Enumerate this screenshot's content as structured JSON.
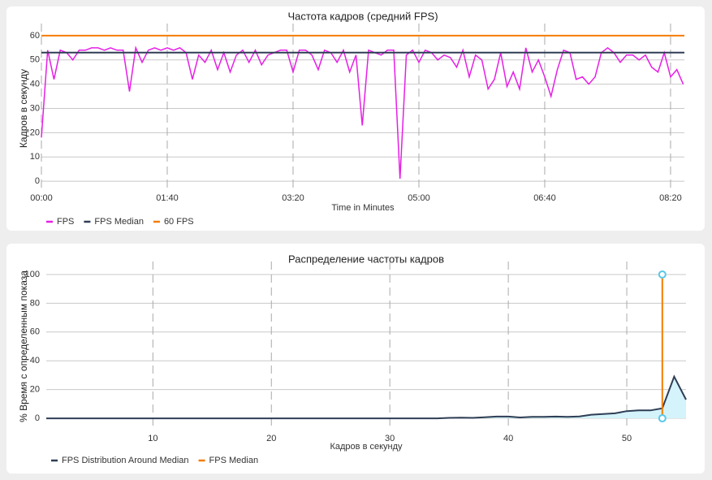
{
  "chart_data": [
    {
      "type": "line",
      "title": "Частота кадров (средний FPS)",
      "x_label": "Time in Minutes",
      "y_label": "Кадров в секунду",
      "xlim": [
        0,
        511
      ],
      "ylim": [
        -5,
        65
      ],
      "xticks": [
        {
          "value": 0,
          "label": "00:00"
        },
        {
          "value": 100,
          "label": "01:40"
        },
        {
          "value": 200,
          "label": "03:20"
        },
        {
          "value": 300,
          "label": "05:00"
        },
        {
          "value": 400,
          "label": "06:40"
        },
        {
          "value": 500,
          "label": "08:20"
        }
      ],
      "yticks": [
        0,
        10,
        20,
        30,
        40,
        50,
        60
      ],
      "grid": true,
      "series": [
        {
          "name": "FPS",
          "color": "#e61fe6",
          "x": [
            0,
            5,
            10,
            15,
            20,
            25,
            30,
            35,
            40,
            45,
            50,
            55,
            60,
            65,
            70,
            75,
            80,
            85,
            90,
            95,
            100,
            105,
            110,
            115,
            120,
            125,
            130,
            135,
            140,
            145,
            150,
            155,
            160,
            165,
            170,
            175,
            180,
            185,
            190,
            195,
            200,
            205,
            210,
            215,
            220,
            225,
            230,
            235,
            240,
            245,
            250,
            255,
            260,
            265,
            270,
            275,
            280,
            285,
            290,
            295,
            300,
            305,
            310,
            315,
            320,
            325,
            330,
            335,
            340,
            345,
            350,
            355,
            360,
            365,
            370,
            375,
            380,
            385,
            390,
            395,
            400,
            405,
            410,
            415,
            420,
            425,
            430,
            435,
            440,
            445,
            450,
            455,
            460,
            465,
            470,
            475,
            480,
            485,
            490,
            495,
            500,
            505,
            510
          ],
          "values": [
            18,
            54,
            42,
            54,
            53,
            50,
            54,
            54,
            55,
            55,
            54,
            55,
            54,
            54,
            37,
            55,
            49,
            54,
            55,
            54,
            55,
            54,
            55,
            53,
            42,
            52,
            49,
            54,
            46,
            53,
            45,
            52,
            54,
            49,
            54,
            48,
            52,
            53,
            54,
            54,
            45,
            54,
            54,
            52,
            46,
            54,
            53,
            49,
            54,
            45,
            52,
            23,
            54,
            53,
            52,
            54,
            54,
            1,
            52,
            54,
            49,
            54,
            53,
            50,
            52,
            51,
            47,
            54,
            43,
            52,
            50,
            38,
            42,
            53,
            39,
            45,
            38,
            55,
            45,
            50,
            43,
            35,
            46,
            54,
            53,
            42,
            43,
            40,
            43,
            53,
            55,
            53,
            49,
            52,
            52,
            50,
            52,
            47,
            45,
            53,
            43,
            46,
            40
          ]
        },
        {
          "name": "FPS Median",
          "color": "#2e3e55",
          "x": [
            0,
            511
          ],
          "values": [
            53,
            53
          ]
        },
        {
          "name": "60 FPS",
          "color": "#f57c00",
          "x": [
            0,
            511
          ],
          "values": [
            60,
            60
          ]
        }
      ]
    },
    {
      "type": "area",
      "title": "Распределение частоты кадров",
      "x_label": "Кадров в секунду",
      "y_label": "% Время с определенным показа",
      "xlim": [
        1,
        55
      ],
      "ylim": [
        -9,
        109
      ],
      "xticks": [
        10,
        20,
        30,
        40,
        50
      ],
      "yticks": [
        0,
        20,
        40,
        60,
        80,
        100
      ],
      "grid": true,
      "series": [
        {
          "name": "FPS Distribution Around Median",
          "color": "#2e3e55",
          "fill": "#d4f3fa",
          "x": [
            1,
            2,
            3,
            4,
            5,
            6,
            7,
            8,
            9,
            10,
            11,
            12,
            13,
            14,
            15,
            16,
            17,
            18,
            19,
            20,
            21,
            22,
            23,
            24,
            25,
            26,
            27,
            28,
            29,
            30,
            31,
            32,
            33,
            34,
            35,
            36,
            37,
            38,
            39,
            40,
            41,
            42,
            43,
            44,
            45,
            46,
            47,
            48,
            49,
            50,
            51,
            52,
            53,
            54,
            55
          ],
          "values": [
            0,
            0,
            0,
            0,
            0,
            0,
            0,
            0,
            0,
            0,
            0,
            0,
            0,
            0,
            0,
            0,
            0,
            0,
            0,
            0,
            0,
            0,
            0,
            0,
            0,
            0,
            0,
            0,
            0,
            0,
            0,
            0,
            0,
            0,
            0.3,
            0.5,
            0.3,
            0.7,
            1.2,
            1.2,
            0.6,
            1,
            1,
            1.2,
            1,
            1.3,
            2.5,
            3,
            3.5,
            5,
            5.5,
            5.5,
            7,
            29,
            13
          ]
        },
        {
          "name": "FPS Median",
          "color": "#f57c00",
          "marker": "#5bc8e8",
          "x": [
            53,
            53
          ],
          "values": [
            0,
            100
          ]
        }
      ]
    }
  ]
}
